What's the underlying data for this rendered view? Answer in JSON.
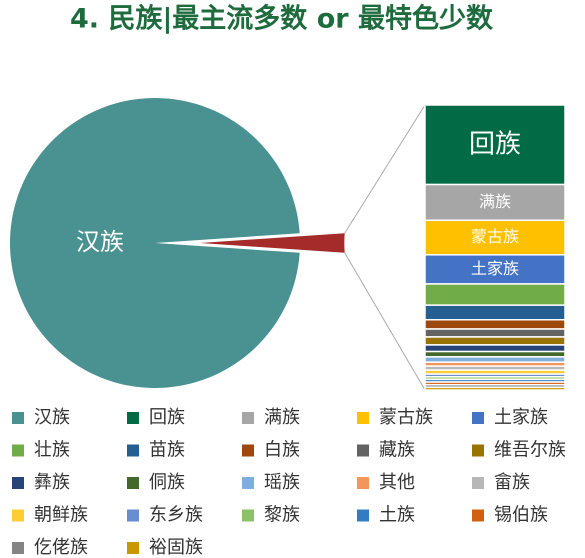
{
  "chart_data": {
    "type": "pie",
    "title": "4. 民族|最主流多数 or 最特色少数",
    "categories": [
      "汉族",
      "回族",
      "满族",
      "蒙古族",
      "土家族",
      "壮族",
      "苗族",
      "白族",
      "藏族",
      "维吾尔族",
      "彝族",
      "侗族",
      "瑶族",
      "其他",
      "畲族",
      "朝鲜族",
      "东乡族",
      "黎族",
      "土族",
      "锡伯族",
      "仡佬族",
      "裕固族"
    ],
    "values": [
      97.85,
      0.6,
      0.27,
      0.26,
      0.22,
      0.16,
      0.11,
      0.07,
      0.06,
      0.06,
      0.05,
      0.04,
      0.04,
      0.03,
      0.03,
      0.03,
      0.02,
      0.02,
      0.02,
      0.02,
      0.02,
      0.02
    ],
    "colors": [
      "#4a9191",
      "#006b45",
      "#a6a6a6",
      "#ffc000",
      "#4472c4",
      "#70ad47",
      "#255e91",
      "#9e480e",
      "#636363",
      "#997300",
      "#264478",
      "#43682b",
      "#7cafdd",
      "#f1975a",
      "#b7b7b7",
      "#ffcd33",
      "#698ed0",
      "#8cc168",
      "#327dc2",
      "#d26012",
      "#848484",
      "#c89800"
    ],
    "other_color": "#a52a2a"
  }
}
